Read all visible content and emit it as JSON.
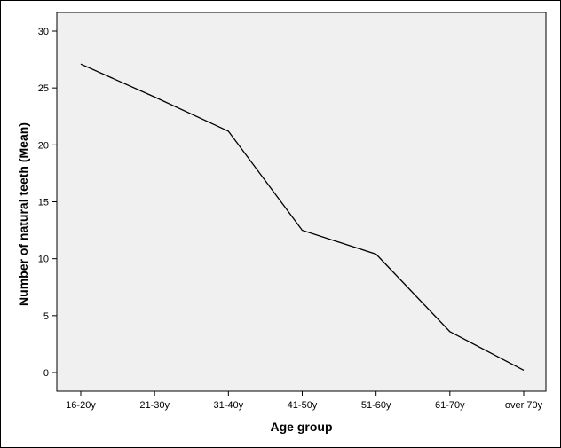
{
  "chart_data": {
    "type": "line",
    "categories": [
      "16-20y",
      "21-30y",
      "31-40y",
      "41-50y",
      "51-60y",
      "61-70y",
      "over 70y"
    ],
    "values": [
      27.1,
      24.2,
      21.2,
      12.5,
      10.4,
      3.6,
      0.2
    ],
    "xlabel": "Age group",
    "ylabel": "Number of natural teeth (Mean)",
    "ylim": [
      0,
      30
    ],
    "yticks": [
      0,
      5,
      10,
      15,
      20,
      25,
      30
    ],
    "grid": false,
    "line_color": "#000000",
    "plot_background": "#f0f0f0"
  }
}
